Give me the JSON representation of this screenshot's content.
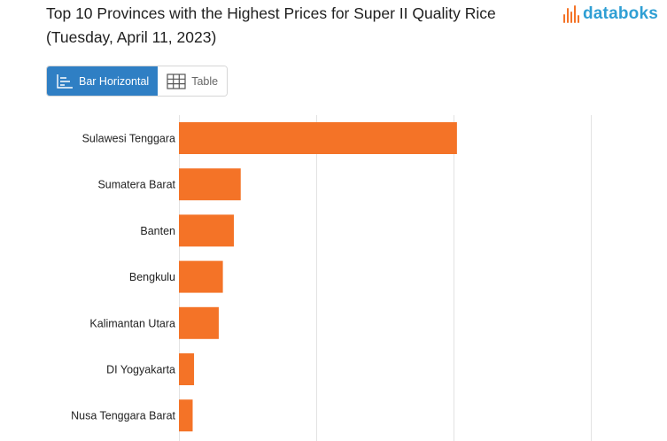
{
  "title": "Top 10 Provinces with the Highest Prices for Super II Quality Rice (Tuesday, April 11, 2023)",
  "brand": {
    "name": "databoks",
    "text_color": "#2f9fd4",
    "mark_colors": [
      "#f47327",
      "#f47327",
      "#2f9fd4",
      "#2f9fd4",
      "#f47327"
    ]
  },
  "tabs": [
    {
      "label": "Bar Horizontal",
      "icon": "bar-chart-icon",
      "active": true
    },
    {
      "label": "Table",
      "icon": "table-icon",
      "active": false
    }
  ],
  "colors": {
    "bar": "#f47327",
    "grid": "#e3e3e3",
    "active_tab": "#2f7fc4"
  },
  "chart_data": {
    "type": "bar",
    "orientation": "horizontal",
    "categories": [
      "Sulawesi Tenggara",
      "Sumatera Barat",
      "Banten",
      "Bengkulu",
      "Kalimantan Utara",
      "DI Yogyakarta",
      "Nusa Tenggara Barat"
    ],
    "values": [
      20250,
      4500,
      4000,
      3200,
      2900,
      1100,
      1000
    ],
    "xlim": [
      0,
      30000
    ],
    "grid": true,
    "gridlines_x": [
      0,
      10000,
      20000,
      30000
    ],
    "title": "Top 10 Provinces with the Highest Prices for Super II Quality Rice (Tuesday, April 11, 2023)",
    "xlabel": "",
    "ylabel": ""
  }
}
